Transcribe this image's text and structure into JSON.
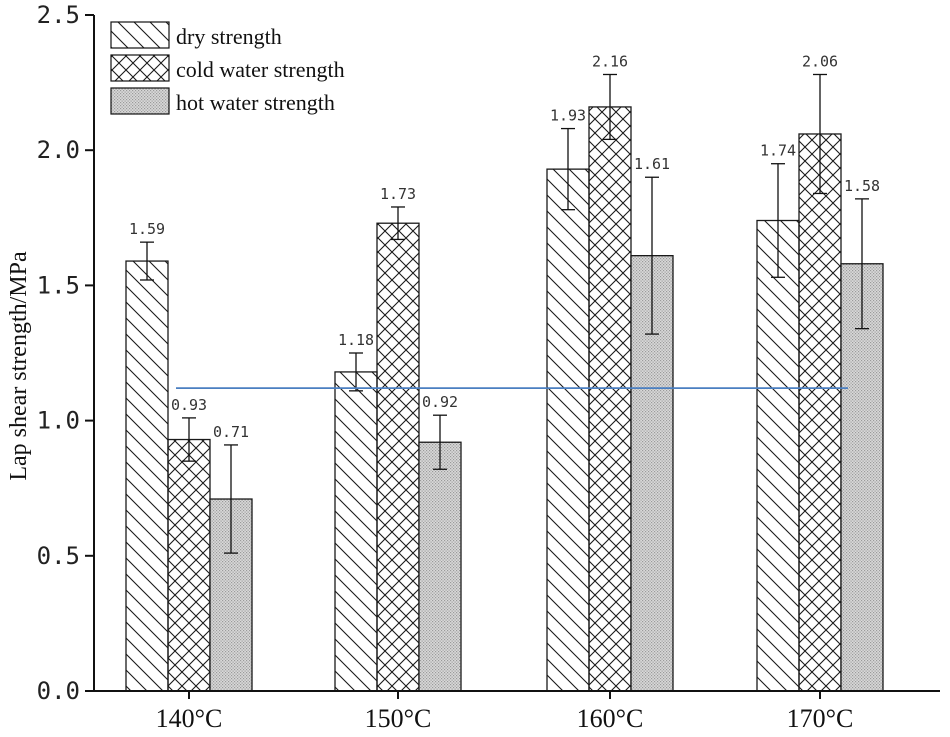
{
  "chart_data": {
    "type": "bar",
    "title": "",
    "xlabel": "",
    "ylabel": "Lap shear strength/MPa",
    "categories": [
      "140°C",
      "150°C",
      "160°C",
      "170°C"
    ],
    "ylim": [
      0,
      2.5
    ],
    "yticks": [
      0.0,
      0.5,
      1.0,
      1.5,
      2.0,
      2.5
    ],
    "ytick_labels": [
      "0.0",
      "0.5",
      "1.0",
      "1.5",
      "2.0",
      "2.5"
    ],
    "legend_position": "top-left",
    "grid": false,
    "series": [
      {
        "name": "dry strength",
        "pattern": "diagonal",
        "values": [
          1.59,
          1.18,
          1.93,
          1.74
        ],
        "errors": [
          0.07,
          0.07,
          0.15,
          0.21
        ],
        "labels": [
          "1.59",
          "1.18",
          "1.93",
          "1.74"
        ]
      },
      {
        "name": "cold water strength",
        "pattern": "crosshatch",
        "values": [
          0.93,
          1.73,
          2.16,
          2.06
        ],
        "errors": [
          0.08,
          0.06,
          0.12,
          0.22
        ],
        "labels": [
          "0.93",
          "1.73",
          "2.16",
          "2.06"
        ]
      },
      {
        "name": "hot water strength",
        "pattern": "dotted",
        "values": [
          0.71,
          0.92,
          1.61,
          1.58
        ],
        "errors": [
          0.2,
          0.1,
          0.29,
          0.24
        ],
        "labels": [
          "0.71",
          "0.92",
          "1.61",
          "1.58"
        ]
      }
    ],
    "reference_line": {
      "value": 1.12,
      "color": "#4a7fc1"
    },
    "colors": {
      "bar_stroke": "#1a1a1a",
      "hatch": "#1a1a1a",
      "dot_fill": "#c8c8c8",
      "axis": "#111111"
    }
  }
}
